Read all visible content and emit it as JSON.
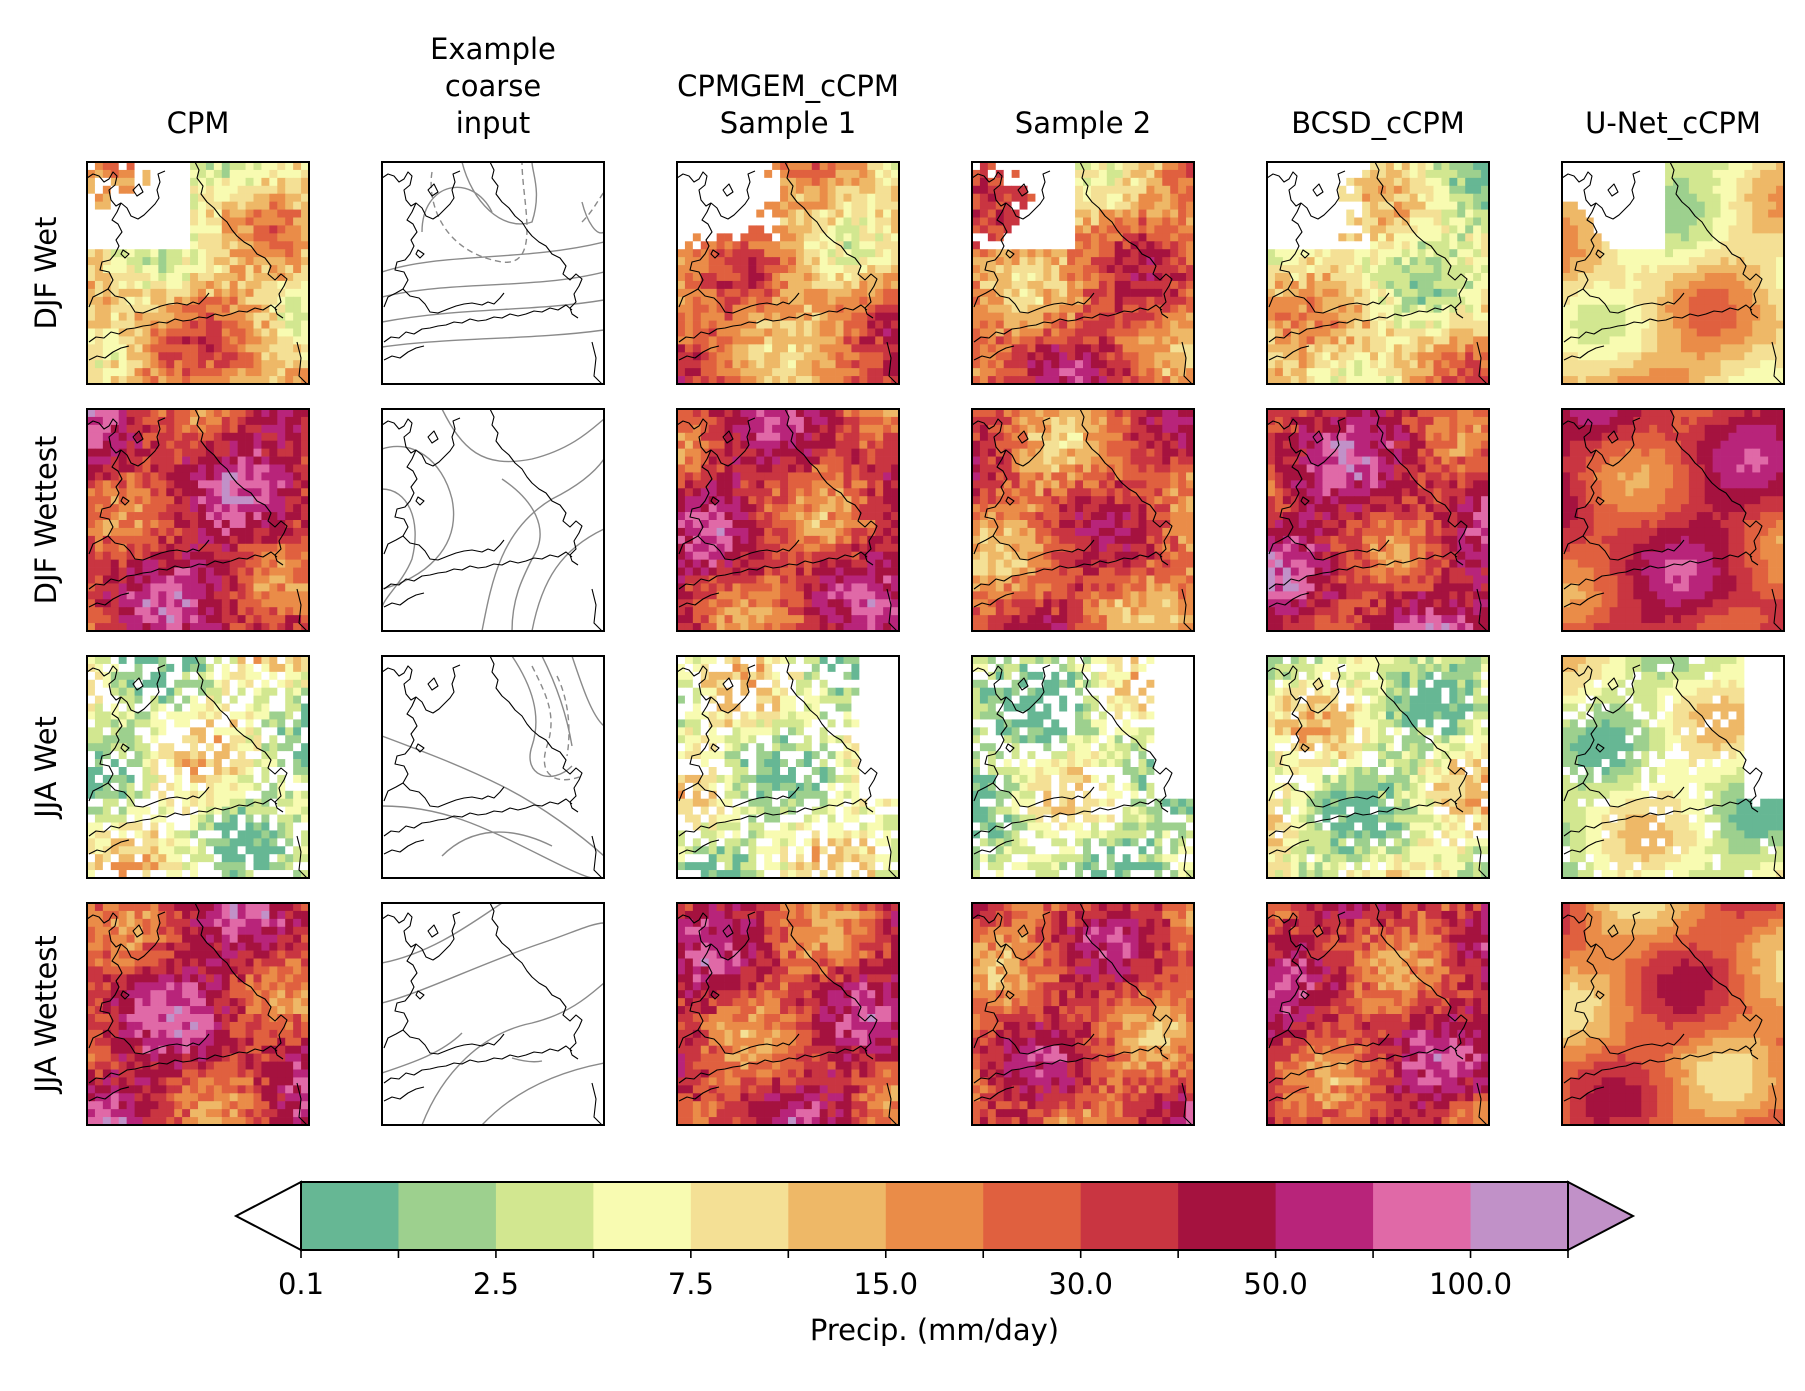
{
  "figure": {
    "columns": [
      {
        "id": "cpm",
        "lines": [
          "CPM"
        ]
      },
      {
        "id": "coarse",
        "lines": [
          "Example",
          "coarse",
          "input"
        ]
      },
      {
        "id": "sample1",
        "lines": [
          "CPMGEM_cCPM",
          "Sample 1"
        ]
      },
      {
        "id": "sample2",
        "lines": [
          "Sample 2"
        ]
      },
      {
        "id": "bcsd",
        "lines": [
          "BCSD_cCPM"
        ]
      },
      {
        "id": "unet",
        "lines": [
          "U-Net_cCPM"
        ]
      }
    ],
    "rows": [
      {
        "id": "djf-wet",
        "label": "DJF Wet"
      },
      {
        "id": "djf-wettest",
        "label": "DJF Wettest"
      },
      {
        "id": "jja-wet",
        "label": "JJA Wet"
      },
      {
        "id": "jja-wettest",
        "label": "JJA Wettest"
      }
    ]
  },
  "chart_data": {
    "type": "heatmap",
    "title": "",
    "panel_grid": "4 rows x 6 columns of precipitation maps over southern Great Britain; column 2 shows coarse-input contour lines instead of a filled field",
    "intensity_index": {
      "description": "approximate mean colour class index (0 = 0.1-1, 12 = >100) per panel, estimated from the image",
      "rows": [
        "DJF Wet",
        "DJF Wettest",
        "JJA Wet",
        "JJA Wettest"
      ],
      "columns": [
        "CPM",
        "CPMGEM_cCPM Sample 1",
        "Sample 2",
        "BCSD_cCPM",
        "U-Net_cCPM"
      ],
      "values": [
        [
          4.5,
          5.5,
          6.5,
          3.5,
          4.0
        ],
        [
          8.5,
          8.0,
          7.0,
          8.5,
          8.0
        ],
        [
          2.5,
          2.5,
          2.0,
          2.5,
          2.5
        ],
        [
          8.5,
          8.0,
          7.5,
          8.0,
          6.5
        ]
      ]
    },
    "colorbar": {
      "label": "Precip. (mm/day)",
      "extend": "both",
      "boundaries": [
        0.1,
        1,
        2.5,
        5,
        7.5,
        10,
        15,
        20,
        30,
        40,
        50,
        75,
        100,
        150
      ],
      "tick_labels": [
        "0.1",
        "2.5",
        "7.5",
        "15.0",
        "30.0",
        "50.0",
        "100.0"
      ],
      "colors": [
        "#66b794",
        "#9dd08e",
        "#d2e790",
        "#f8fbb1",
        "#f4e095",
        "#eeb867",
        "#ea8c48",
        "#e0603f",
        "#c93541",
        "#a5123f",
        "#b8247a",
        "#e069a7",
        "#c191c8"
      ],
      "under_color": "#ffffff",
      "over_color": "#c191c8"
    }
  }
}
